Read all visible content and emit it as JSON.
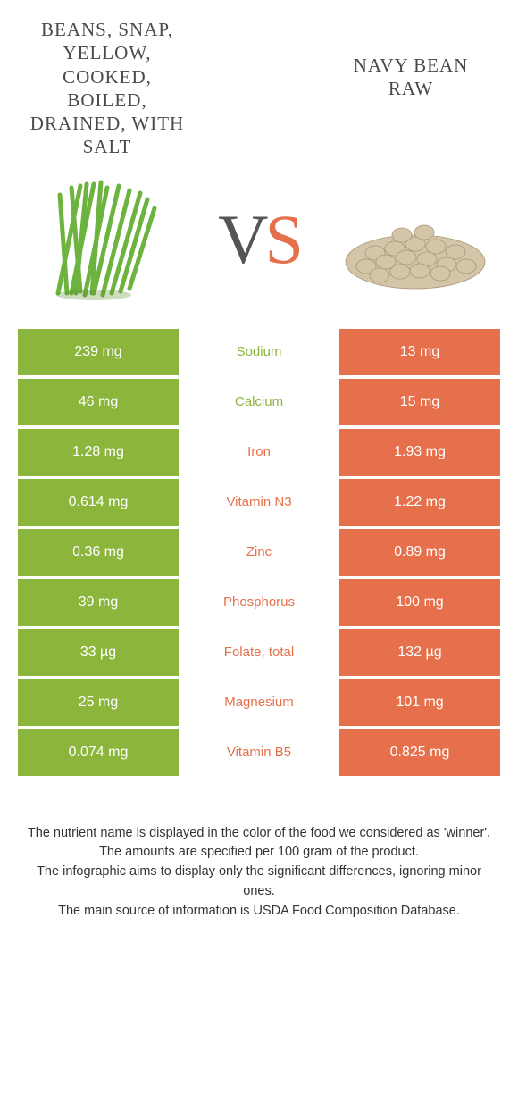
{
  "colors": {
    "green": "#8bb53b",
    "orange": "#e6704b",
    "white": "#ffffff",
    "text": "#4a4a4a"
  },
  "foods": {
    "left": {
      "title": "BEANS, SNAP, YELLOW, COOKED, BOILED, DRAINED, WITH SALT"
    },
    "right": {
      "title": "NAVY BEAN RAW"
    }
  },
  "vs": {
    "v": "V",
    "s": "S"
  },
  "rows": [
    {
      "left": "239 mg",
      "label": "Sodium",
      "right": "13 mg",
      "winner": "left"
    },
    {
      "left": "46 mg",
      "label": "Calcium",
      "right": "15 mg",
      "winner": "left"
    },
    {
      "left": "1.28 mg",
      "label": "Iron",
      "right": "1.93 mg",
      "winner": "right"
    },
    {
      "left": "0.614 mg",
      "label": "Vitamin N3",
      "right": "1.22 mg",
      "winner": "right"
    },
    {
      "left": "0.36 mg",
      "label": "Zinc",
      "right": "0.89 mg",
      "winner": "right"
    },
    {
      "left": "39 mg",
      "label": "Phosphorus",
      "right": "100 mg",
      "winner": "right"
    },
    {
      "left": "33 µg",
      "label": "Folate, total",
      "right": "132 µg",
      "winner": "right"
    },
    {
      "left": "25 mg",
      "label": "Magnesium",
      "right": "101 mg",
      "winner": "right"
    },
    {
      "left": "0.074 mg",
      "label": "Vitamin B5",
      "right": "0.825 mg",
      "winner": "right"
    }
  ],
  "footer": {
    "line1": "The nutrient name is displayed in the color of the food we considered as 'winner'.",
    "line2": "The amounts are specified per 100 gram of the product.",
    "line3": "The infographic aims to display only the significant differences, ignoring minor ones.",
    "line4": "The main source of information is USDA Food Composition Database."
  }
}
